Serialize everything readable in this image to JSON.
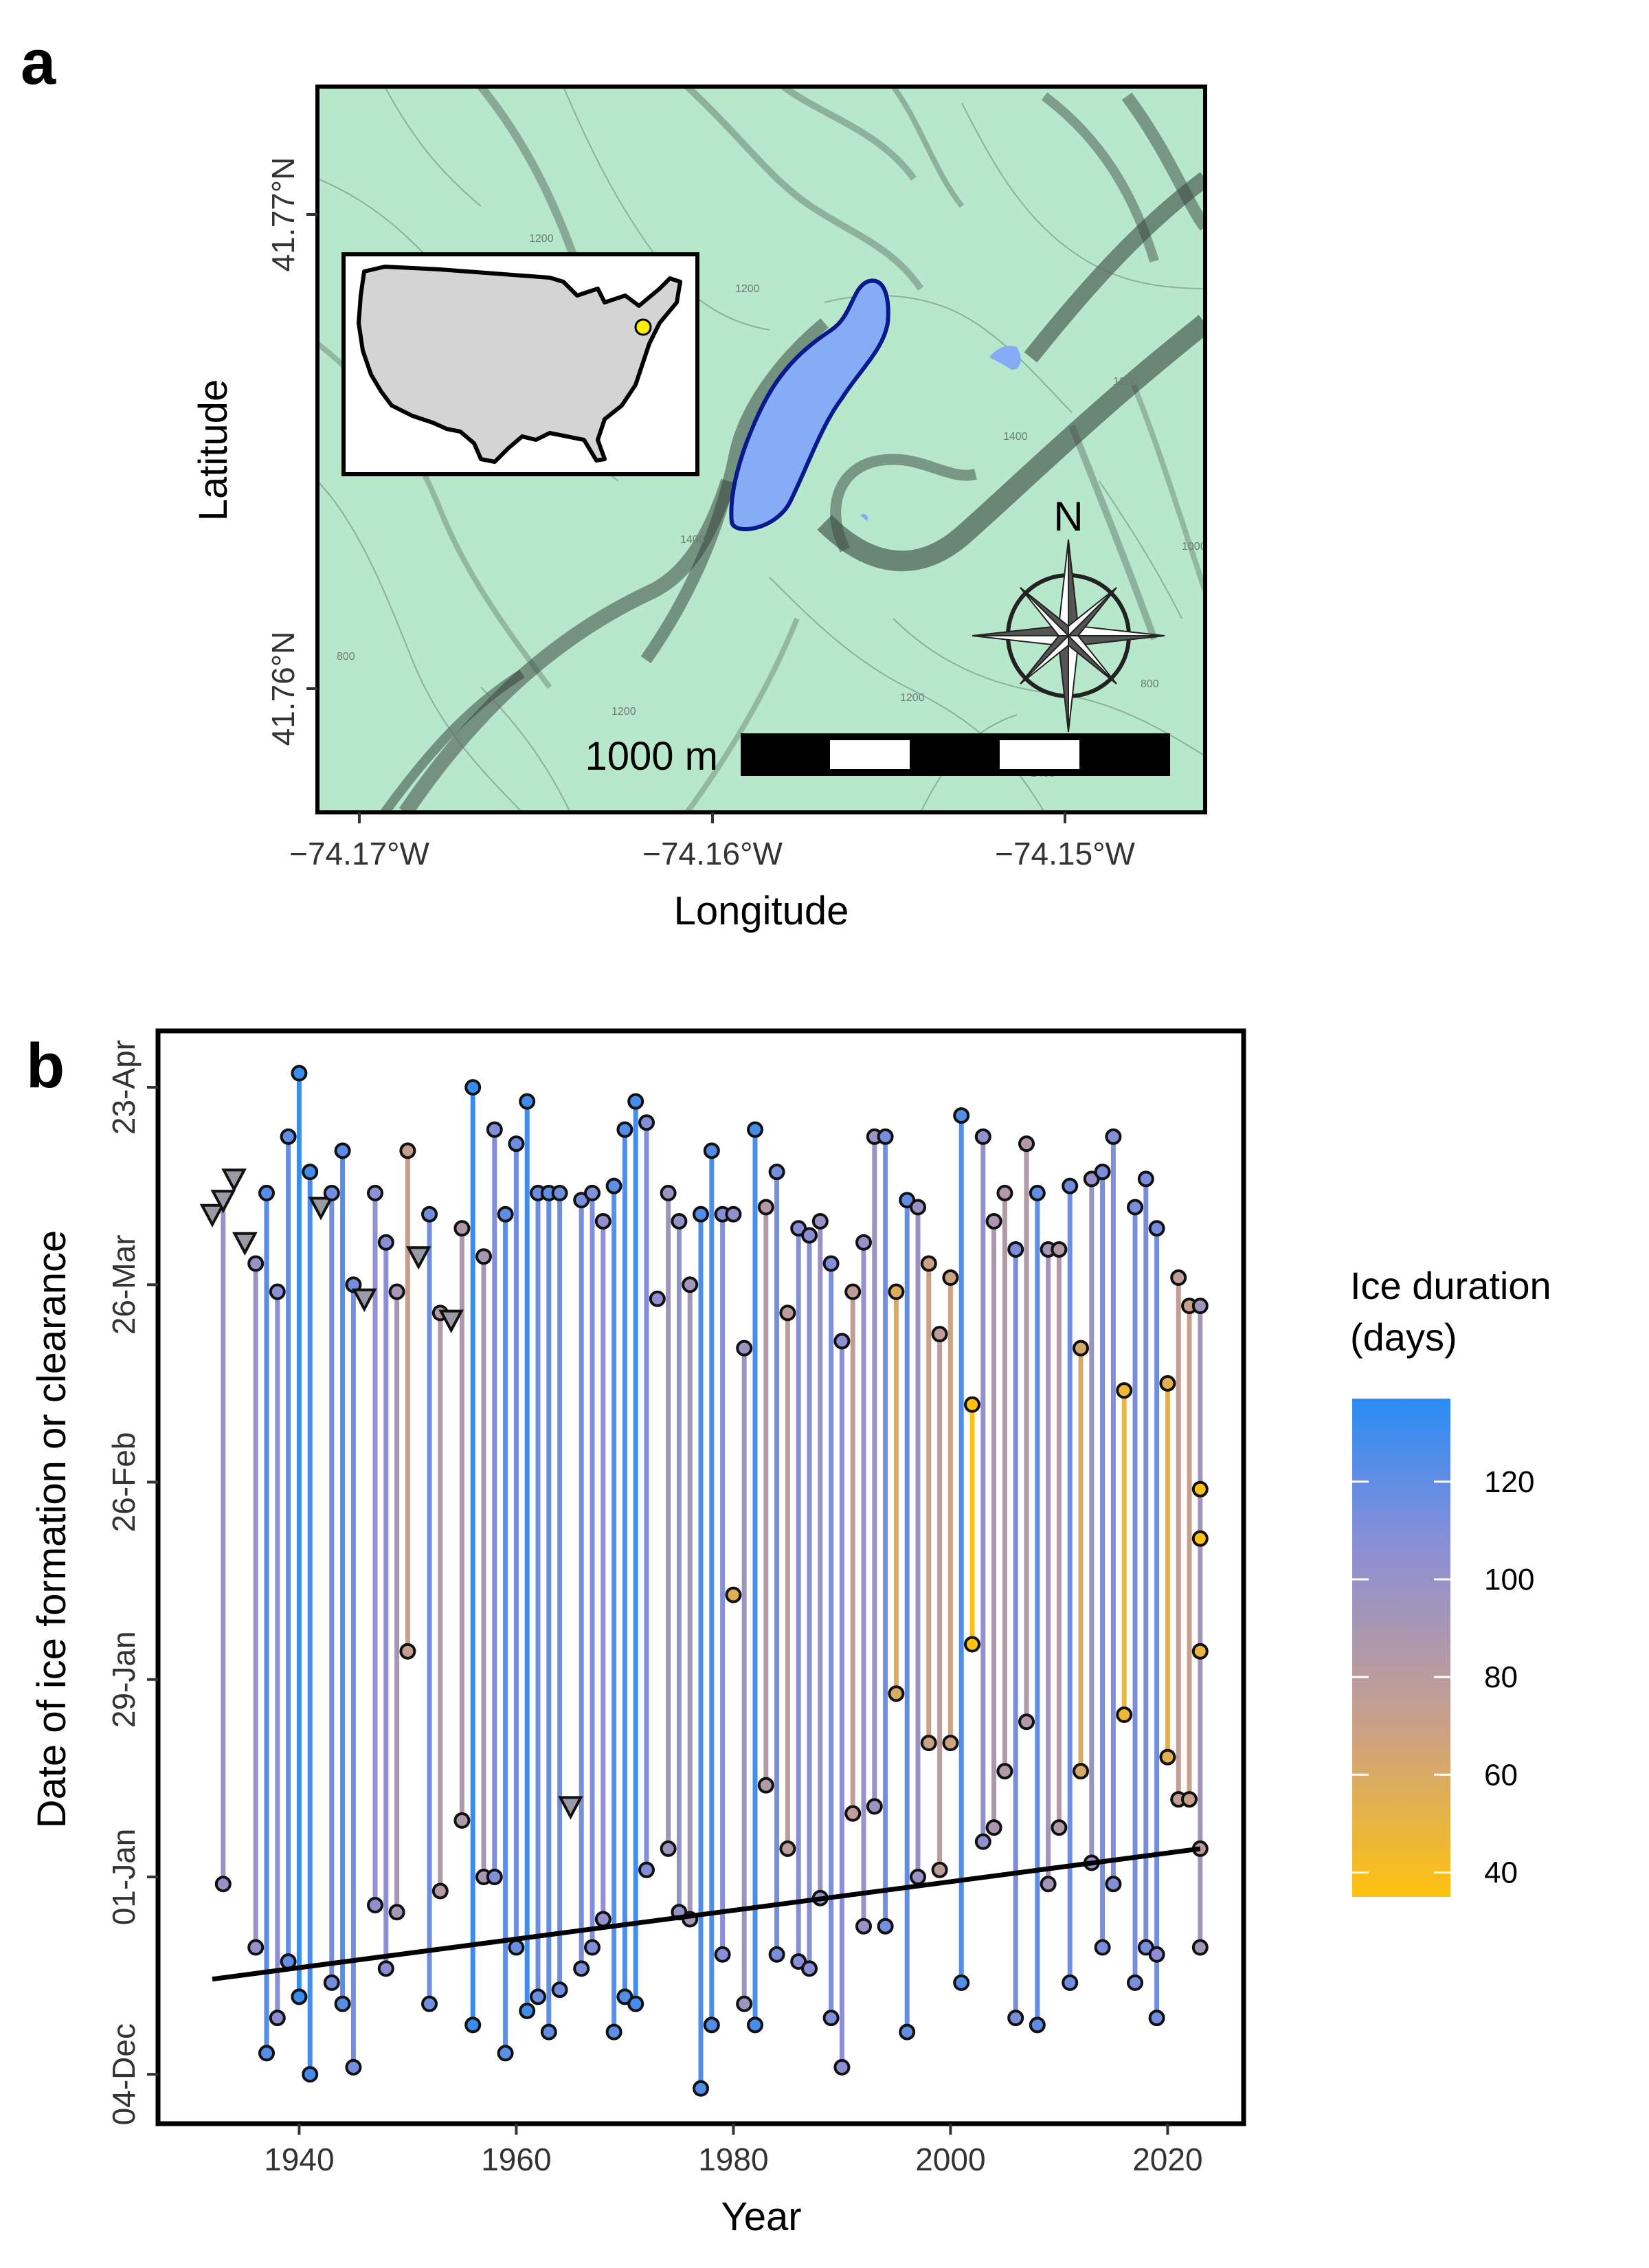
{
  "panel_a": {
    "label": "a",
    "xlabel": "Longitude",
    "ylabel": "Latitude",
    "x_ticks": [
      "−74.17°W",
      "−74.16°W",
      "−74.15°W"
    ],
    "y_ticks": [
      "41.77°N",
      "41.76°N"
    ],
    "north_label": "N",
    "scale_label": "1000 m",
    "contour_labels": [
      "1200",
      "1200",
      "1400",
      "1400",
      "800",
      "1200",
      "1200",
      "1000",
      "800",
      "1200",
      "1400"
    ],
    "colors": {
      "terrain": "#b7e8cb",
      "lake_fill": "#86acf5",
      "lake_edge": "#0a1a8c",
      "site_marker": "#ffee00",
      "inset_land": "#d4d4d4"
    }
  },
  "chart_data": {
    "type": "lollipop-range",
    "label": "b",
    "title": "",
    "xlabel": "Year",
    "ylabel": "Date of ice formation or clearance",
    "xlim": [
      1927,
      2027
    ],
    "x_ticks": [
      1940,
      1960,
      1980,
      2000,
      2020
    ],
    "ylim_days_from_dec1": [
      -4,
      151
    ],
    "y_ticks": [
      {
        "label": "04-Dec",
        "day": 3
      },
      {
        "label": "01-Jan",
        "day": 31
      },
      {
        "label": "29-Jan",
        "day": 59
      },
      {
        "label": "26-Feb",
        "day": 87
      },
      {
        "label": "26-Mar",
        "day": 115
      },
      {
        "label": "23-Apr",
        "day": 143
      }
    ],
    "legend": {
      "title_line1": "Ice duration",
      "title_line2": "(days)",
      "ticks": [
        40,
        60,
        80,
        100,
        120
      ],
      "range": [
        35,
        137
      ],
      "colors": [
        "#ffc20e",
        "#c9a08a",
        "#8c8fd6",
        "#2a8cf5"
      ]
    },
    "trend": {
      "x": [
        1932,
        2023
      ],
      "day": [
        16.5,
        35
      ]
    },
    "records": [
      {
        "year": 1932,
        "ice_on_day": null,
        "ice_off_day": 125,
        "ice_off_censored": true
      },
      {
        "year": 1933,
        "ice_on_day": 30,
        "ice_off_day": 127,
        "ice_off_censored": true
      },
      {
        "year": 1934,
        "ice_on_day": null,
        "ice_off_day": 130,
        "ice_off_censored": true
      },
      {
        "year": 1935,
        "ice_on_day": null,
        "ice_off_day": 121,
        "ice_off_censored": true
      },
      {
        "year": 1936,
        "ice_on_day": 21,
        "ice_off_day": 118,
        "ice_off_censored": false
      },
      {
        "year": 1937,
        "ice_on_day": 6,
        "ice_off_day": 128,
        "ice_off_censored": false
      },
      {
        "year": 1938,
        "ice_on_day": 11,
        "ice_off_day": 114,
        "ice_off_censored": false
      },
      {
        "year": 1939,
        "ice_on_day": 19,
        "ice_off_day": 136,
        "ice_off_censored": false
      },
      {
        "year": 1940,
        "ice_on_day": 14,
        "ice_off_day": 145,
        "ice_off_censored": false
      },
      {
        "year": 1941,
        "ice_on_day": 3,
        "ice_off_day": 131,
        "ice_off_censored": false
      },
      {
        "year": 1942,
        "ice_on_day": null,
        "ice_off_day": 126,
        "ice_off_censored": true
      },
      {
        "year": 1943,
        "ice_on_day": 16,
        "ice_off_day": 128,
        "ice_off_censored": false
      },
      {
        "year": 1944,
        "ice_on_day": 13,
        "ice_off_day": 134,
        "ice_off_censored": false
      },
      {
        "year": 1945,
        "ice_on_day": 4,
        "ice_off_day": 115,
        "ice_off_censored": false
      },
      {
        "year": 1946,
        "ice_on_day": null,
        "ice_off_day": 113,
        "ice_off_censored": true
      },
      {
        "year": 1947,
        "ice_on_day": 27,
        "ice_off_day": 128,
        "ice_off_censored": false
      },
      {
        "year": 1948,
        "ice_on_day": 18,
        "ice_off_day": 121,
        "ice_off_censored": false
      },
      {
        "year": 1949,
        "ice_on_day": 26,
        "ice_off_day": 114,
        "ice_off_censored": false
      },
      {
        "year": 1950,
        "ice_on_day": 63,
        "ice_off_day": 134,
        "ice_off_censored": false
      },
      {
        "year": 1951,
        "ice_on_day": null,
        "ice_off_day": 119,
        "ice_off_censored": true
      },
      {
        "year": 1952,
        "ice_on_day": 13,
        "ice_off_day": 125,
        "ice_off_censored": false
      },
      {
        "year": 1953,
        "ice_on_day": 29,
        "ice_off_day": 111,
        "ice_off_censored": false
      },
      {
        "year": 1954,
        "ice_on_day": null,
        "ice_off_day": 110,
        "ice_off_censored": true
      },
      {
        "year": 1955,
        "ice_on_day": 39,
        "ice_off_day": 123,
        "ice_off_censored": false
      },
      {
        "year": 1956,
        "ice_on_day": 10,
        "ice_off_day": 143,
        "ice_off_censored": false
      },
      {
        "year": 1957,
        "ice_on_day": 31,
        "ice_off_day": 119,
        "ice_off_censored": false
      },
      {
        "year": 1958,
        "ice_on_day": 31,
        "ice_off_day": 137,
        "ice_off_censored": false
      },
      {
        "year": 1959,
        "ice_on_day": 6,
        "ice_off_day": 125,
        "ice_off_censored": false
      },
      {
        "year": 1960,
        "ice_on_day": 21,
        "ice_off_day": 135,
        "ice_off_censored": false
      },
      {
        "year": 1961,
        "ice_on_day": 12,
        "ice_off_day": 141,
        "ice_off_censored": false
      },
      {
        "year": 1962,
        "ice_on_day": 14,
        "ice_off_day": 128,
        "ice_off_censored": false
      },
      {
        "year": 1963,
        "ice_on_day": 9,
        "ice_off_day": 128,
        "ice_off_censored": false
      },
      {
        "year": 1964,
        "ice_on_day": 15,
        "ice_off_day": 128,
        "ice_off_censored": false
      },
      {
        "year": 1965,
        "ice_on_day": null,
        "ice_off_day": null,
        "ice_on_censored": true,
        "censored_day": 41
      },
      {
        "year": 1966,
        "ice_on_day": 18,
        "ice_off_day": 127,
        "ice_off_censored": false
      },
      {
        "year": 1967,
        "ice_on_day": 21,
        "ice_off_day": 128,
        "ice_off_censored": false
      },
      {
        "year": 1968,
        "ice_on_day": 25,
        "ice_off_day": 124,
        "ice_off_censored": false
      },
      {
        "year": 1969,
        "ice_on_day": 9,
        "ice_off_day": 129,
        "ice_off_censored": false
      },
      {
        "year": 1970,
        "ice_on_day": 14,
        "ice_off_day": 137,
        "ice_off_censored": false
      },
      {
        "year": 1971,
        "ice_on_day": 13,
        "ice_off_day": 141,
        "ice_off_censored": false
      },
      {
        "year": 1972,
        "ice_on_day": 32,
        "ice_off_day": 138,
        "ice_off_censored": false
      },
      {
        "year": 1973,
        "ice_on_day": null,
        "ice_off_day": 113,
        "ice_off_censored": false
      },
      {
        "year": 1974,
        "ice_on_day": 35,
        "ice_off_day": 128,
        "ice_off_censored": false
      },
      {
        "year": 1975,
        "ice_on_day": 26,
        "ice_off_day": 124,
        "ice_off_censored": false
      },
      {
        "year": 1976,
        "ice_on_day": 25,
        "ice_off_day": 115,
        "ice_off_censored": false
      },
      {
        "year": 1977,
        "ice_on_day": 1,
        "ice_off_day": 125,
        "ice_off_censored": false
      },
      {
        "year": 1978,
        "ice_on_day": 10,
        "ice_off_day": 134,
        "ice_off_censored": false
      },
      {
        "year": 1979,
        "ice_on_day": 20,
        "ice_off_day": 125,
        "ice_off_censored": false
      },
      {
        "year": 1980,
        "ice_on_day": null,
        "ice_off_day": 125,
        "ice_off_censored": false,
        "extra_point_day": 71
      },
      {
        "year": 1981,
        "ice_on_day": 13,
        "ice_off_day": 106,
        "ice_off_censored": false
      },
      {
        "year": 1982,
        "ice_on_day": 10,
        "ice_off_day": 137,
        "ice_off_censored": false
      },
      {
        "year": 1983,
        "ice_on_day": 44,
        "ice_off_day": 126,
        "ice_off_censored": false
      },
      {
        "year": 1984,
        "ice_on_day": 20,
        "ice_off_day": 131,
        "ice_off_censored": false
      },
      {
        "year": 1985,
        "ice_on_day": 35,
        "ice_off_day": 111,
        "ice_off_censored": false
      },
      {
        "year": 1986,
        "ice_on_day": 19,
        "ice_off_day": 123,
        "ice_off_censored": false
      },
      {
        "year": 1987,
        "ice_on_day": 18,
        "ice_off_day": 122,
        "ice_off_censored": false
      },
      {
        "year": 1988,
        "ice_on_day": 28,
        "ice_off_day": 124,
        "ice_off_censored": false
      },
      {
        "year": 1989,
        "ice_on_day": 11,
        "ice_off_day": 118,
        "ice_off_censored": false
      },
      {
        "year": 1990,
        "ice_on_day": 4,
        "ice_off_day": 107,
        "ice_off_censored": false
      },
      {
        "year": 1991,
        "ice_on_day": 40,
        "ice_off_day": 114,
        "ice_off_censored": false
      },
      {
        "year": 1992,
        "ice_on_day": 24,
        "ice_off_day": 121,
        "ice_off_censored": false
      },
      {
        "year": 1993,
        "ice_on_day": 41,
        "ice_off_day": 136,
        "ice_off_censored": false
      },
      {
        "year": 1994,
        "ice_on_day": 24,
        "ice_off_day": 136,
        "ice_off_censored": false
      },
      {
        "year": 1995,
        "ice_on_day": 57,
        "ice_off_day": 114,
        "ice_off_censored": false
      },
      {
        "year": 1996,
        "ice_on_day": 9,
        "ice_off_day": 127,
        "ice_off_censored": false
      },
      {
        "year": 1997,
        "ice_on_day": 31,
        "ice_off_day": 126,
        "ice_off_censored": false
      },
      {
        "year": 1998,
        "ice_on_day": 50,
        "ice_off_day": 118,
        "ice_off_censored": false
      },
      {
        "year": 1999,
        "ice_on_day": 32,
        "ice_off_day": 108,
        "ice_off_censored": false
      },
      {
        "year": 2000,
        "ice_on_day": 50,
        "ice_off_day": 116,
        "ice_off_censored": false
      },
      {
        "year": 2001,
        "ice_on_day": 16,
        "ice_off_day": 139,
        "ice_off_censored": false
      },
      {
        "year": 2002,
        "ice_on_day": 64,
        "ice_off_day": 98,
        "ice_off_censored": false
      },
      {
        "year": 2003,
        "ice_on_day": 36,
        "ice_off_day": 136,
        "ice_off_censored": false
      },
      {
        "year": 2004,
        "ice_on_day": 38,
        "ice_off_day": 124,
        "ice_off_censored": false
      },
      {
        "year": 2005,
        "ice_on_day": 46,
        "ice_off_day": 128,
        "ice_off_censored": false
      },
      {
        "year": 2006,
        "ice_on_day": 11,
        "ice_off_day": 120,
        "ice_off_censored": false
      },
      {
        "year": 2007,
        "ice_on_day": 53,
        "ice_off_day": 135,
        "ice_off_censored": false
      },
      {
        "year": 2008,
        "ice_on_day": 10,
        "ice_off_day": 128,
        "ice_off_censored": false
      },
      {
        "year": 2009,
        "ice_on_day": 30,
        "ice_off_day": 120,
        "ice_off_censored": false
      },
      {
        "year": 2010,
        "ice_on_day": 38,
        "ice_off_day": 120,
        "ice_off_censored": false
      },
      {
        "year": 2011,
        "ice_on_day": 16,
        "ice_off_day": 129,
        "ice_off_censored": false
      },
      {
        "year": 2012,
        "ice_on_day": 46,
        "ice_off_day": 106,
        "ice_off_censored": false
      },
      {
        "year": 2013,
        "ice_on_day": 33,
        "ice_off_day": 130,
        "ice_off_censored": false
      },
      {
        "year": 2014,
        "ice_on_day": 21,
        "ice_off_day": 131,
        "ice_off_censored": false
      },
      {
        "year": 2015,
        "ice_on_day": 30,
        "ice_off_day": 136,
        "ice_off_censored": false
      },
      {
        "year": 2016,
        "ice_on_day": 54,
        "ice_off_day": 100,
        "ice_off_censored": false
      },
      {
        "year": 2017,
        "ice_on_day": 16,
        "ice_off_day": 126,
        "ice_off_censored": false
      },
      {
        "year": 2018,
        "ice_on_day": 21,
        "ice_off_day": 130,
        "ice_off_censored": false
      },
      {
        "year": 2019,
        "ice_on_day": 11,
        "ice_off_day": 123,
        "ice_off_censored": false,
        "extra_point_day": 20
      },
      {
        "year": 2020,
        "ice_on_day": 48,
        "ice_off_day": 101,
        "ice_off_censored": false
      },
      {
        "year": 2021,
        "ice_on_day": 42,
        "ice_off_day": 116,
        "ice_off_censored": false
      },
      {
        "year": 2022,
        "ice_on_day": 42,
        "ice_off_day": 112,
        "ice_off_censored": false
      },
      {
        "year": 2023,
        "ice_on_day": 21,
        "ice_off_day": 112,
        "ice_off_censored": false,
        "extra_point_days": [
          35,
          63,
          79,
          86
        ]
      }
    ]
  }
}
